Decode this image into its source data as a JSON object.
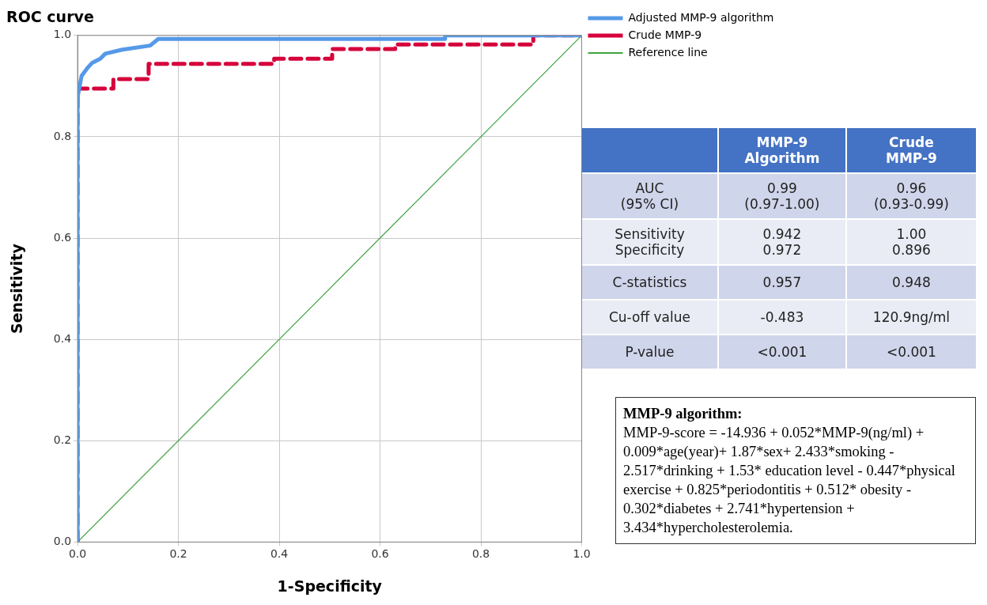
{
  "chart_data": [
    {
      "type": "line",
      "title": "ROC curve",
      "xlabel": "1-Specificity",
      "ylabel": "Sensitivity",
      "xlim": [
        0,
        1
      ],
      "ylim": [
        0,
        1
      ],
      "xticks": [
        {
          "value": 0,
          "label": "0.0"
        },
        {
          "value": 0.2,
          "label": "0.2"
        },
        {
          "value": 0.4,
          "label": "0.4"
        },
        {
          "value": 0.6,
          "label": "0.6"
        },
        {
          "value": 0.8,
          "label": "0.8"
        },
        {
          "value": 1,
          "label": "1.0"
        }
      ],
      "yticks": [
        {
          "value": 0,
          "label": "0.0"
        },
        {
          "value": 0.2,
          "label": "0.2"
        },
        {
          "value": 0.4,
          "label": "0.4"
        },
        {
          "value": 0.6,
          "label": "0.6"
        },
        {
          "value": 0.8,
          "label": "0.8"
        },
        {
          "value": 1,
          "label": "1.0"
        }
      ],
      "grid": true,
      "legend": "right",
      "marker": "none",
      "series": [
        {
          "name": "Adjusted MMP-9 algorithm",
          "color": "#5599e8",
          "line_style": "solid",
          "x": [
            0,
            0,
            0.008,
            0.019,
            0.029,
            0.045,
            0.055,
            0.089,
            0.144,
            0.16,
            0.729,
            0.729,
            1
          ],
          "values": [
            0,
            0.878,
            0.92,
            0.935,
            0.946,
            0.954,
            0.964,
            0.972,
            0.98,
            0.993,
            0.993,
            1,
            1
          ]
        },
        {
          "name": "Crude MMP-9",
          "color": "#d6003a",
          "line_style": "dashed",
          "x": [
            0,
            0,
            0.071,
            0.071,
            0.141,
            0.141,
            0.39,
            0.39,
            0.505,
            0.505,
            0.63,
            0.63,
            0.904,
            0.904,
            1
          ],
          "values": [
            0,
            0.895,
            0.895,
            0.914,
            0.914,
            0.944,
            0.944,
            0.954,
            0.954,
            0.973,
            0.973,
            0.982,
            0.982,
            1,
            1
          ]
        },
        {
          "name": "Reference line",
          "color": "#3fa33f",
          "line_style": "solid",
          "x": [
            0,
            1
          ],
          "values": [
            0,
            1
          ]
        }
      ]
    },
    {
      "type": "other",
      "categories": [
        null,
        "MMP-9\nAlgorithm",
        "Crude\nMMP-9"
      ],
      "y_categories": [
        "AUC\n(95% CI)",
        "Sensitivity\nSpecificity",
        "C-statistics",
        "Cu-off value",
        "P-value"
      ],
      "cell_labels": [
        [
          "0.99\n(0.97-1.00)",
          "0.96\n(0.93-0.99)"
        ],
        [
          "0.942\n0.972",
          "1.00\n0.896"
        ],
        [
          "0.957",
          "0.948"
        ],
        [
          "-0.483",
          "120.9ng/ml"
        ],
        [
          "<0.001",
          "<0.001"
        ]
      ]
    },
    {
      "type": "other",
      "title": "MMP-9 algorithm:",
      "annotations": [
        "MMP-9-score = -14.936 + 0.052*MMP-9(ng/ml) + 0.009*age(year)+ 1.87*sex+ 2.433*smoking - 2.517*drinking + 1.53* education level - 0.447*physical exercise + 0.825*periodontitis + 0.512* obesity - 0.302*diabetes + 2.741*hypertension + 3.434*hypercholesterolemia."
      ]
    }
  ]
}
